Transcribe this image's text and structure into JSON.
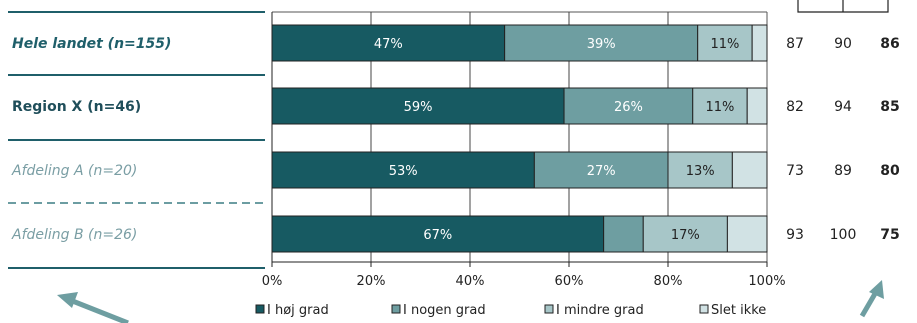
{
  "chart_data": {
    "type": "bar",
    "orientation": "horizontal",
    "stacked": true,
    "xlim": [
      0,
      100
    ],
    "x_ticks": [
      "0%",
      "20%",
      "40%",
      "60%",
      "80%",
      "100%"
    ],
    "grid": true,
    "legend_position": "bottom",
    "series_names": [
      "I høj grad",
      "I nogen grad",
      "I mindre grad",
      "Slet ikke"
    ],
    "colors": [
      "#175a62",
      "#6e9ea1",
      "#a7c6c8",
      "#d1e2e4"
    ],
    "rows": [
      {
        "label": "Hele landet (n=155)",
        "style": "bold-italic",
        "values": [
          47,
          39,
          11,
          3
        ],
        "labels": [
          "47%",
          "39%",
          "11%",
          ""
        ],
        "right_values": [
          "87",
          "90",
          "86"
        ]
      },
      {
        "label": "Region X (n=46)",
        "style": "bold",
        "values": [
          59,
          26,
          11,
          4
        ],
        "labels": [
          "59%",
          "26%",
          "11%",
          ""
        ],
        "right_values": [
          "82",
          "94",
          "85"
        ]
      },
      {
        "label": "Afdeling A (n=20)",
        "style": "italic",
        "values": [
          53,
          27,
          13,
          7
        ],
        "labels": [
          "53%",
          "27%",
          "13%",
          ""
        ],
        "right_values": [
          "73",
          "89",
          "80"
        ]
      },
      {
        "label": "Afdeling B (n=26)",
        "style": "italic",
        "values": [
          67,
          8,
          17,
          8
        ],
        "labels": [
          "67%",
          "",
          "17%",
          ""
        ],
        "right_values": [
          "93",
          "100",
          "75"
        ]
      }
    ]
  }
}
